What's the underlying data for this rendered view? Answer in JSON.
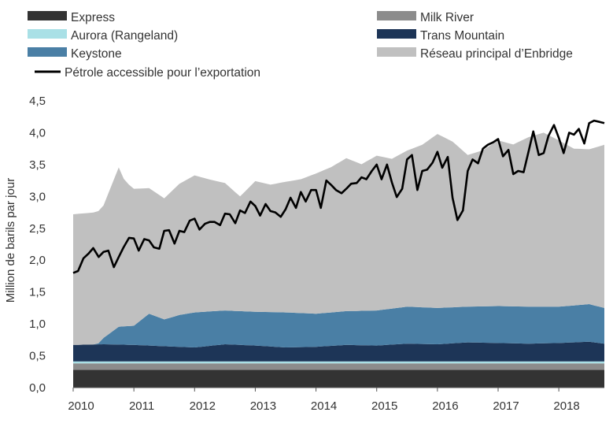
{
  "chart_data": {
    "type": "area",
    "ylabel": "Million de barils par jour",
    "xlabel": "",
    "ylim": [
      0,
      4.5
    ],
    "xlim": [
      2010.0,
      2018.75
    ],
    "grid": false,
    "legend_position": "top",
    "y_ticks": [
      "0,0",
      "0,5",
      "1,0",
      "1,5",
      "2,0",
      "2,5",
      "3,0",
      "3,5",
      "4,0",
      "4,5"
    ],
    "x_ticks": [
      "2010",
      "2011",
      "2012",
      "2013",
      "2014",
      "2015",
      "2016",
      "2017",
      "2018"
    ],
    "stack_order": [
      "Express",
      "Milk River",
      "Aurora (Rangeland)",
      "Trans Mountain",
      "Keystone",
      "Réseau principal d’Enbridge"
    ],
    "legend": [
      {
        "name": "Express",
        "color": "#333333",
        "kind": "area"
      },
      {
        "name": "Milk River",
        "color": "#8c8c8c",
        "kind": "area"
      },
      {
        "name": "Aurora (Rangeland)",
        "color": "#a9e0e6",
        "kind": "area"
      },
      {
        "name": "Trans Mountain",
        "color": "#1d3557",
        "kind": "area"
      },
      {
        "name": "Keystone",
        "color": "#4a7fa5",
        "kind": "area"
      },
      {
        "name": "Réseau principal d’Enbridge",
        "color": "#c0c0c0",
        "kind": "area"
      },
      {
        "name": "Pétrole accessible pour l’exportation",
        "color": "#000000",
        "kind": "line"
      }
    ],
    "area_series": [
      {
        "name": "Express",
        "color": "#333333",
        "points": [
          [
            2010.0,
            0.28
          ],
          [
            2018.75,
            0.28
          ]
        ]
      },
      {
        "name": "Milk River",
        "color": "#8c8c8c",
        "points": [
          [
            2010.0,
            0.1
          ],
          [
            2018.75,
            0.1
          ]
        ]
      },
      {
        "name": "Aurora (Rangeland)",
        "color": "#a9e0e6",
        "points": [
          [
            2010.0,
            0.03
          ],
          [
            2018.75,
            0.03
          ]
        ]
      },
      {
        "name": "Trans Mountain",
        "color": "#1d3557",
        "points": [
          [
            2010.0,
            0.26
          ],
          [
            2010.5,
            0.27
          ],
          [
            2011.0,
            0.26
          ],
          [
            2011.5,
            0.24
          ],
          [
            2012.0,
            0.22
          ],
          [
            2012.5,
            0.27
          ],
          [
            2013.0,
            0.25
          ],
          [
            2013.5,
            0.22
          ],
          [
            2014.0,
            0.23
          ],
          [
            2014.5,
            0.26
          ],
          [
            2015.0,
            0.25
          ],
          [
            2015.5,
            0.28
          ],
          [
            2016.0,
            0.27
          ],
          [
            2016.5,
            0.3
          ],
          [
            2017.0,
            0.29
          ],
          [
            2017.5,
            0.28
          ],
          [
            2018.0,
            0.29
          ],
          [
            2018.5,
            0.31
          ],
          [
            2018.75,
            0.28
          ]
        ]
      },
      {
        "name": "Keystone",
        "color": "#4a7fa5",
        "points": [
          [
            2010.0,
            0.0
          ],
          [
            2010.4,
            0.0
          ],
          [
            2010.5,
            0.1
          ],
          [
            2010.75,
            0.28
          ],
          [
            2011.0,
            0.3
          ],
          [
            2011.25,
            0.5
          ],
          [
            2011.5,
            0.42
          ],
          [
            2011.75,
            0.5
          ],
          [
            2012.0,
            0.55
          ],
          [
            2012.5,
            0.53
          ],
          [
            2013.0,
            0.53
          ],
          [
            2013.5,
            0.55
          ],
          [
            2014.0,
            0.52
          ],
          [
            2014.5,
            0.53
          ],
          [
            2015.0,
            0.55
          ],
          [
            2015.5,
            0.58
          ],
          [
            2016.0,
            0.57
          ],
          [
            2016.5,
            0.56
          ],
          [
            2017.0,
            0.58
          ],
          [
            2017.5,
            0.58
          ],
          [
            2018.0,
            0.57
          ],
          [
            2018.5,
            0.59
          ],
          [
            2018.75,
            0.56
          ]
        ]
      },
      {
        "name": "Réseau principal d’Enbridge",
        "color": "#c0c0c0",
        "points": [
          [
            2010.0,
            2.05
          ],
          [
            2010.5,
            2.08
          ],
          [
            2010.75,
            2.5
          ],
          [
            2010.85,
            2.28
          ],
          [
            2011.0,
            2.15
          ],
          [
            2011.25,
            1.97
          ],
          [
            2011.5,
            1.9
          ],
          [
            2011.75,
            2.06
          ],
          [
            2012.0,
            2.15
          ],
          [
            2012.25,
            2.07
          ],
          [
            2012.5,
            2.0
          ],
          [
            2012.75,
            1.8
          ],
          [
            2013.0,
            2.05
          ],
          [
            2013.25,
            2.0
          ],
          [
            2013.5,
            2.05
          ],
          [
            2013.75,
            2.1
          ],
          [
            2014.0,
            2.2
          ],
          [
            2014.25,
            2.28
          ],
          [
            2014.5,
            2.4
          ],
          [
            2014.75,
            2.3
          ],
          [
            2015.0,
            2.43
          ],
          [
            2015.25,
            2.35
          ],
          [
            2015.5,
            2.45
          ],
          [
            2015.75,
            2.55
          ],
          [
            2016.0,
            2.73
          ],
          [
            2016.25,
            2.6
          ],
          [
            2016.5,
            2.38
          ],
          [
            2016.75,
            2.45
          ],
          [
            2017.0,
            2.6
          ],
          [
            2017.25,
            2.54
          ],
          [
            2017.5,
            2.66
          ],
          [
            2017.75,
            2.73
          ],
          [
            2018.0,
            2.61
          ],
          [
            2018.25,
            2.46
          ],
          [
            2018.5,
            2.43
          ],
          [
            2018.75,
            2.56
          ]
        ]
      }
    ],
    "line_series": {
      "name": "Pétrole accessible pour l’exportation",
      "color": "#000000",
      "points": [
        [
          2010.0,
          1.8
        ],
        [
          2010.08,
          1.83
        ],
        [
          2010.17,
          2.03
        ],
        [
          2010.25,
          2.1
        ],
        [
          2010.33,
          2.19
        ],
        [
          2010.42,
          2.05
        ],
        [
          2010.5,
          2.13
        ],
        [
          2010.58,
          2.15
        ],
        [
          2010.67,
          1.89
        ],
        [
          2010.75,
          2.05
        ],
        [
          2010.83,
          2.2
        ],
        [
          2010.92,
          2.35
        ],
        [
          2011.0,
          2.34
        ],
        [
          2011.08,
          2.15
        ],
        [
          2011.17,
          2.33
        ],
        [
          2011.25,
          2.31
        ],
        [
          2011.33,
          2.2
        ],
        [
          2011.42,
          2.18
        ],
        [
          2011.5,
          2.46
        ],
        [
          2011.58,
          2.47
        ],
        [
          2011.67,
          2.26
        ],
        [
          2011.75,
          2.46
        ],
        [
          2011.83,
          2.44
        ],
        [
          2011.92,
          2.62
        ],
        [
          2012.0,
          2.65
        ],
        [
          2012.08,
          2.48
        ],
        [
          2012.17,
          2.57
        ],
        [
          2012.25,
          2.6
        ],
        [
          2012.33,
          2.6
        ],
        [
          2012.42,
          2.55
        ],
        [
          2012.5,
          2.73
        ],
        [
          2012.58,
          2.72
        ],
        [
          2012.67,
          2.58
        ],
        [
          2012.75,
          2.78
        ],
        [
          2012.83,
          2.74
        ],
        [
          2012.92,
          2.92
        ],
        [
          2013.0,
          2.85
        ],
        [
          2013.08,
          2.7
        ],
        [
          2013.17,
          2.88
        ],
        [
          2013.25,
          2.77
        ],
        [
          2013.33,
          2.75
        ],
        [
          2013.42,
          2.68
        ],
        [
          2013.5,
          2.8
        ],
        [
          2013.58,
          2.98
        ],
        [
          2013.67,
          2.82
        ],
        [
          2013.75,
          3.07
        ],
        [
          2013.83,
          2.92
        ],
        [
          2013.92,
          3.1
        ],
        [
          2014.0,
          3.1
        ],
        [
          2014.08,
          2.82
        ],
        [
          2014.17,
          3.25
        ],
        [
          2014.25,
          3.18
        ],
        [
          2014.33,
          3.1
        ],
        [
          2014.42,
          3.05
        ],
        [
          2014.5,
          3.12
        ],
        [
          2014.58,
          3.2
        ],
        [
          2014.67,
          3.21
        ],
        [
          2014.75,
          3.3
        ],
        [
          2014.83,
          3.27
        ],
        [
          2014.92,
          3.4
        ],
        [
          2015.0,
          3.5
        ],
        [
          2015.08,
          3.27
        ],
        [
          2015.17,
          3.5
        ],
        [
          2015.25,
          3.22
        ],
        [
          2015.33,
          2.99
        ],
        [
          2015.42,
          3.12
        ],
        [
          2015.5,
          3.58
        ],
        [
          2015.58,
          3.65
        ],
        [
          2015.67,
          3.1
        ],
        [
          2015.75,
          3.4
        ],
        [
          2015.83,
          3.42
        ],
        [
          2015.92,
          3.53
        ],
        [
          2016.0,
          3.7
        ],
        [
          2016.08,
          3.45
        ],
        [
          2016.17,
          3.62
        ],
        [
          2016.25,
          2.98
        ],
        [
          2016.33,
          2.63
        ],
        [
          2016.42,
          2.78
        ],
        [
          2016.5,
          3.4
        ],
        [
          2016.58,
          3.58
        ],
        [
          2016.67,
          3.52
        ],
        [
          2016.75,
          3.75
        ],
        [
          2016.83,
          3.81
        ],
        [
          2016.92,
          3.85
        ],
        [
          2017.0,
          3.9
        ],
        [
          2017.08,
          3.63
        ],
        [
          2017.17,
          3.73
        ],
        [
          2017.25,
          3.35
        ],
        [
          2017.33,
          3.4
        ],
        [
          2017.42,
          3.38
        ],
        [
          2017.5,
          3.7
        ],
        [
          2017.58,
          4.02
        ],
        [
          2017.67,
          3.65
        ],
        [
          2017.75,
          3.68
        ],
        [
          2017.83,
          3.95
        ],
        [
          2017.92,
          4.12
        ],
        [
          2018.0,
          3.92
        ],
        [
          2018.08,
          3.68
        ],
        [
          2018.17,
          4.0
        ],
        [
          2018.25,
          3.97
        ],
        [
          2018.33,
          4.06
        ],
        [
          2018.42,
          3.83
        ],
        [
          2018.5,
          4.15
        ],
        [
          2018.58,
          4.19
        ],
        [
          2018.67,
          4.17
        ],
        [
          2018.75,
          4.15
        ]
      ]
    }
  }
}
